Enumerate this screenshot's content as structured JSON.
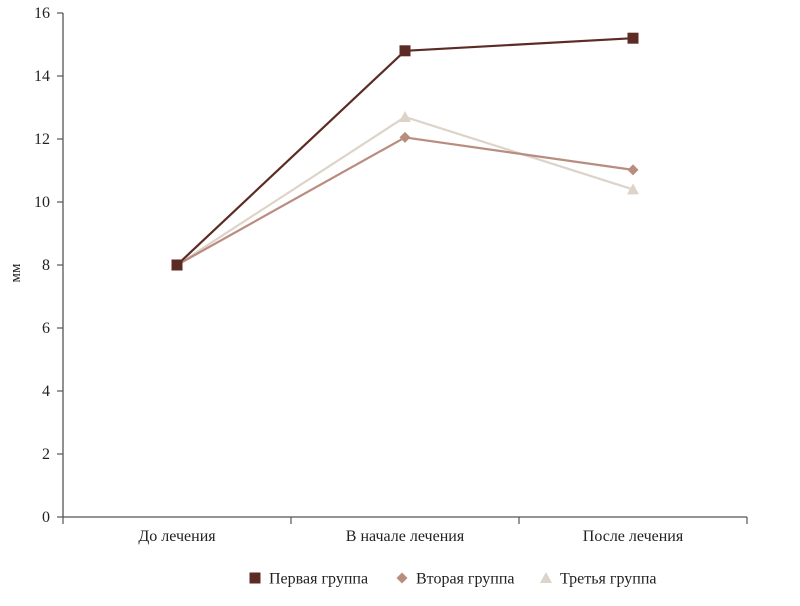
{
  "chart_data": {
    "type": "line",
    "title": "",
    "xlabel": "",
    "ylabel": "мм",
    "categories": [
      "До лечения",
      "В начале лечения",
      "После лечения"
    ],
    "ylim": [
      0,
      16
    ],
    "yticks": [
      0,
      2,
      4,
      6,
      8,
      10,
      12,
      14,
      16
    ],
    "grid": false,
    "legend_position": "bottom",
    "series": [
      {
        "name": "Первая группа",
        "values": [
          8.0,
          14.8,
          15.2
        ],
        "color": "#5c2b23",
        "marker": "square"
      },
      {
        "name": "Вторая группа",
        "values": [
          8.0,
          12.05,
          11.02
        ],
        "color": "#b98c80",
        "marker": "diamond"
      },
      {
        "name": "Третья группа",
        "values": [
          8.0,
          12.7,
          10.4
        ],
        "color": "#ddd3c9",
        "marker": "triangle"
      }
    ]
  }
}
